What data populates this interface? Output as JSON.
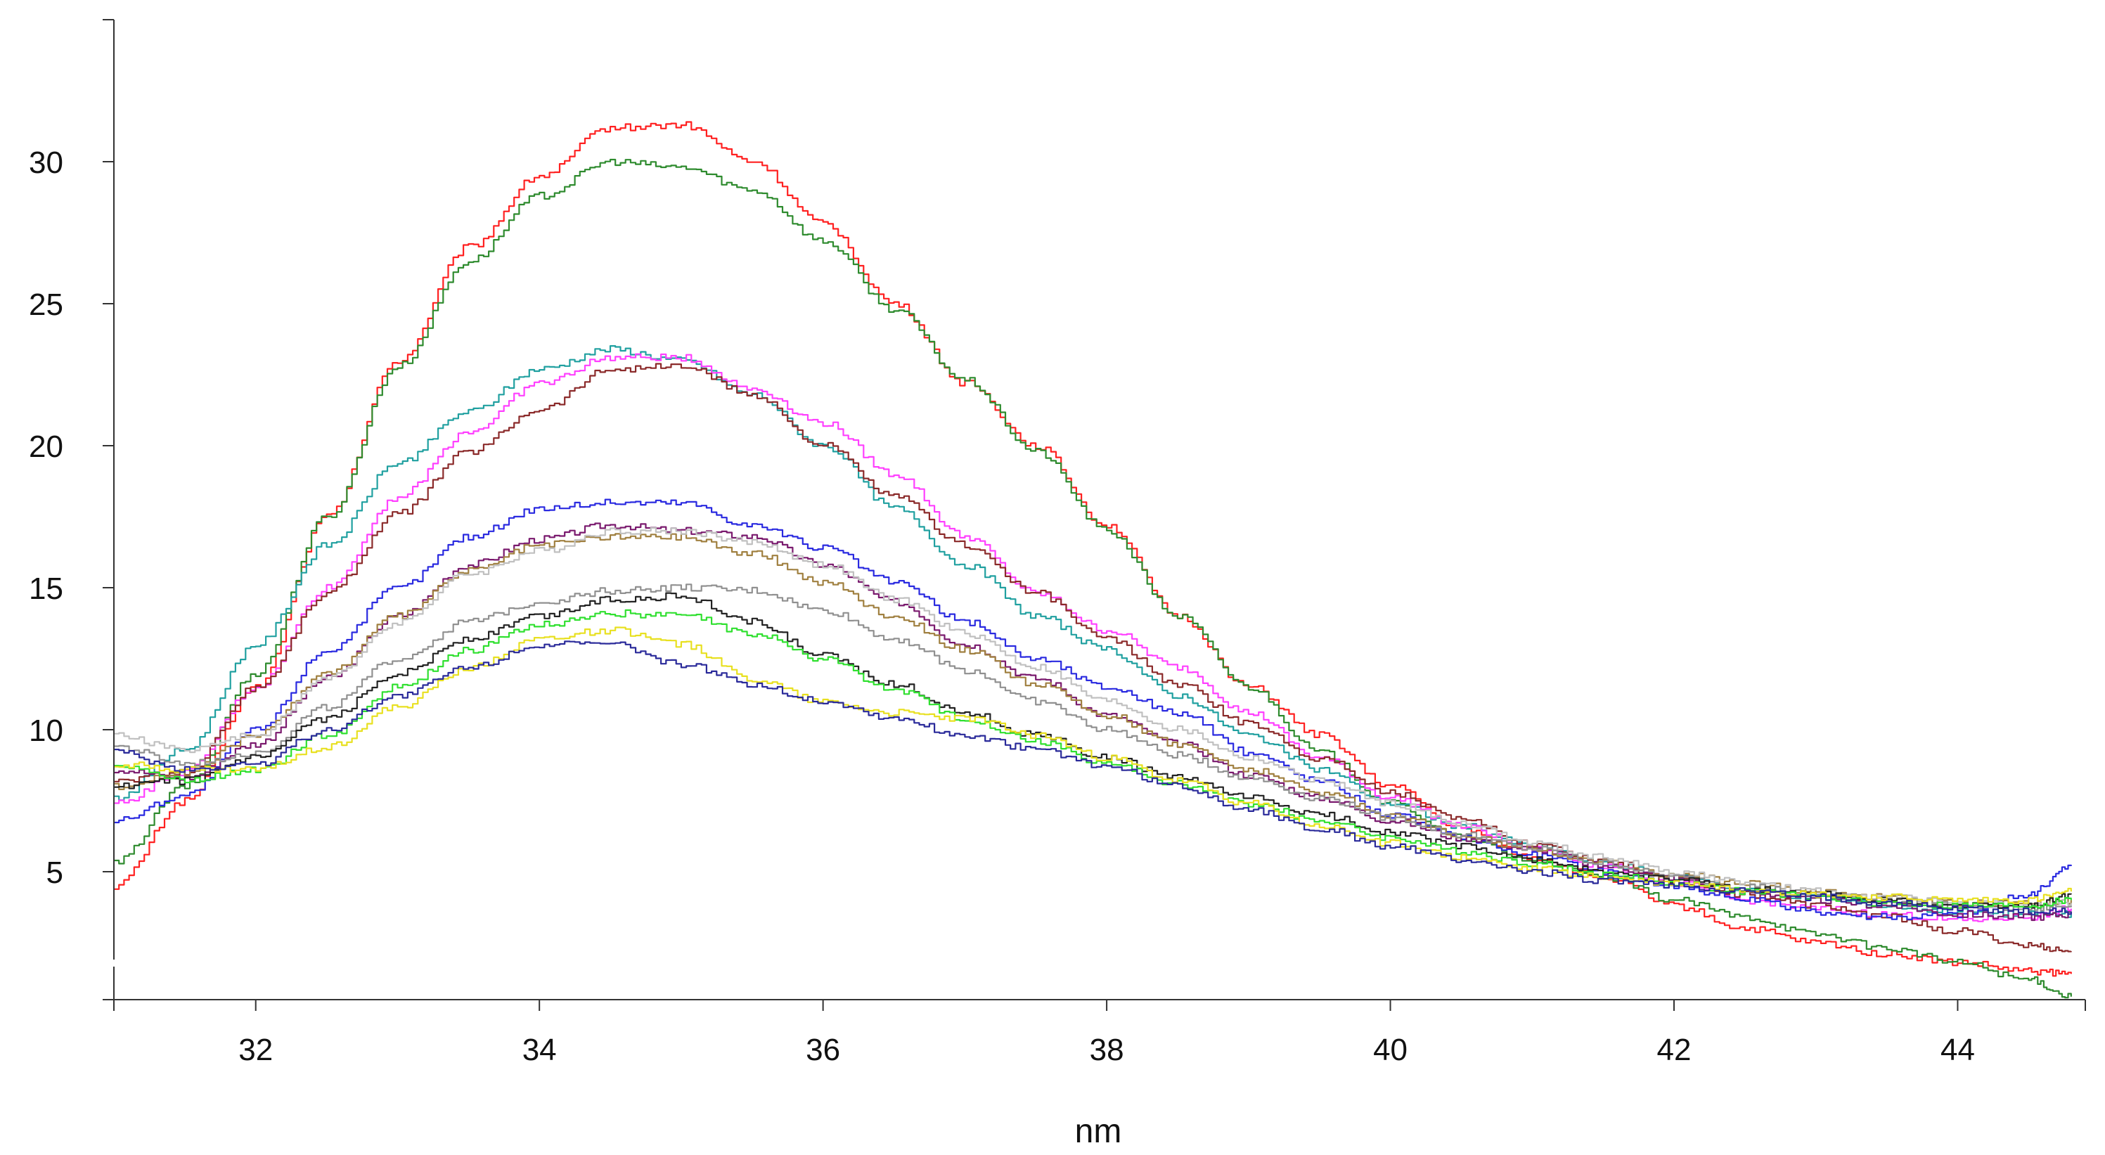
{
  "chart_data": {
    "type": "line",
    "title": "",
    "xlabel": "nm",
    "ylabel": "",
    "xlim": [
      31,
      44.9
    ],
    "ylim": [
      0,
      35
    ],
    "xticks": [
      "32",
      "34",
      "36",
      "38",
      "40",
      "42",
      "44"
    ],
    "yticks": [
      "5",
      "10",
      "15",
      "20",
      "25",
      "30"
    ],
    "grid": false,
    "legend": "none",
    "x": [
      31.0,
      31.5,
      32.0,
      32.5,
      33.0,
      33.5,
      34.0,
      34.5,
      35.0,
      35.5,
      36.0,
      36.5,
      37.0,
      37.5,
      38.0,
      38.5,
      39.0,
      39.5,
      40.0,
      40.5,
      41.0,
      41.5,
      42.0,
      42.5,
      43.0,
      43.5,
      44.0,
      44.5,
      44.8
    ],
    "series": [
      {
        "color": "#ff2020",
        "values": [
          4.5,
          7.5,
          11.5,
          17.5,
          23.0,
          27.0,
          29.5,
          31.2,
          31.3,
          30.0,
          27.8,
          25.0,
          22.2,
          20.0,
          17.2,
          14.0,
          11.5,
          9.8,
          8.0,
          6.5,
          5.5,
          4.8,
          3.8,
          3.0,
          2.5,
          2.1,
          1.8,
          1.5,
          1.4
        ]
      },
      {
        "color": "#2e8b2e",
        "values": [
          5.3,
          8.0,
          12.0,
          17.5,
          22.8,
          26.5,
          28.8,
          30.0,
          29.8,
          29.0,
          27.2,
          24.8,
          22.3,
          19.8,
          17.0,
          14.0,
          11.5,
          9.2,
          7.4,
          6.2,
          5.4,
          4.8,
          4.0,
          3.4,
          2.8,
          2.3,
          1.8,
          1.2,
          0.6
        ]
      },
      {
        "color": "#20a0a0",
        "values": [
          7.6,
          9.3,
          13.0,
          16.5,
          19.4,
          21.2,
          22.7,
          23.4,
          23.0,
          21.8,
          20.0,
          17.8,
          15.8,
          14.0,
          12.8,
          11.2,
          9.8,
          8.6,
          7.4,
          6.6,
          5.9,
          5.3,
          4.8,
          4.4,
          4.1,
          3.8,
          3.6,
          3.5,
          3.5
        ]
      },
      {
        "color": "#ff40ff",
        "values": [
          7.4,
          8.5,
          11.5,
          15.0,
          18.2,
          20.5,
          22.2,
          23.1,
          23.1,
          22.0,
          20.8,
          19.0,
          16.8,
          14.8,
          13.5,
          12.2,
          10.6,
          9.0,
          7.6,
          6.6,
          5.8,
          5.2,
          4.6,
          4.0,
          3.7,
          3.5,
          3.3,
          3.4,
          3.7
        ]
      },
      {
        "color": "#8b2a2a",
        "values": [
          8.2,
          8.5,
          11.5,
          14.8,
          17.6,
          19.8,
          21.3,
          22.7,
          22.8,
          21.8,
          20.0,
          18.2,
          16.5,
          14.8,
          13.2,
          11.6,
          10.2,
          9.0,
          7.8,
          6.8,
          6.0,
          5.4,
          4.7,
          4.2,
          3.8,
          3.4,
          2.9,
          2.4,
          2.2
        ]
      },
      {
        "color": "#2a2ae0",
        "values": [
          6.8,
          7.7,
          10.0,
          12.8,
          15.0,
          16.8,
          17.8,
          18.0,
          18.0,
          17.2,
          16.4,
          15.2,
          13.8,
          12.5,
          11.5,
          10.6,
          9.2,
          8.2,
          7.0,
          6.2,
          5.6,
          5.0,
          4.5,
          4.0,
          3.6,
          3.4,
          3.5,
          4.2,
          5.2
        ]
      },
      {
        "color": "#7a1a6e",
        "values": [
          8.6,
          8.3,
          9.5,
          11.8,
          14.0,
          15.8,
          16.7,
          17.2,
          17.0,
          16.8,
          15.8,
          14.5,
          13.0,
          11.8,
          10.5,
          9.5,
          8.4,
          7.6,
          6.8,
          6.2,
          5.8,
          5.2,
          4.8,
          4.3,
          4.0,
          3.8,
          3.5,
          3.4,
          3.5
        ]
      },
      {
        "color": "#a08040",
        "values": [
          8.0,
          8.5,
          9.8,
          12.0,
          14.0,
          15.6,
          16.5,
          16.8,
          16.8,
          16.2,
          15.2,
          14.0,
          12.8,
          11.6,
          10.5,
          9.5,
          8.6,
          7.8,
          7.0,
          6.3,
          5.8,
          5.3,
          4.9,
          4.6,
          4.3,
          4.1,
          3.9,
          3.9,
          4.0
        ]
      },
      {
        "color": "#c0c0c0",
        "values": [
          9.8,
          9.3,
          9.8,
          11.8,
          13.8,
          15.5,
          16.3,
          17.0,
          17.0,
          16.6,
          15.8,
          14.6,
          13.4,
          12.2,
          11.0,
          10.0,
          9.0,
          8.2,
          7.4,
          6.7,
          6.0,
          5.5,
          5.0,
          4.6,
          4.3,
          4.1,
          3.9,
          3.8,
          3.9
        ]
      },
      {
        "color": "#909090",
        "values": [
          9.4,
          8.8,
          9.2,
          10.8,
          12.5,
          13.8,
          14.5,
          14.9,
          15.0,
          14.9,
          14.2,
          13.2,
          12.1,
          11.0,
          10.0,
          9.1,
          8.3,
          7.6,
          6.9,
          6.3,
          5.8,
          5.3,
          4.8,
          4.5,
          4.2,
          4.0,
          3.8,
          3.7,
          3.8
        ]
      },
      {
        "color": "#222222",
        "values": [
          8.0,
          8.2,
          9.0,
          10.4,
          12.0,
          13.2,
          14.0,
          14.6,
          14.7,
          13.8,
          12.6,
          11.6,
          10.6,
          9.8,
          9.0,
          8.3,
          7.6,
          7.0,
          6.4,
          5.9,
          5.4,
          5.0,
          4.7,
          4.4,
          4.2,
          4.0,
          3.8,
          3.8,
          4.2
        ]
      },
      {
        "color": "#30e030",
        "values": [
          8.8,
          8.2,
          8.6,
          9.8,
          11.5,
          12.8,
          13.7,
          14.1,
          14.0,
          13.4,
          12.5,
          11.4,
          10.4,
          9.6,
          8.8,
          8.1,
          7.4,
          6.8,
          6.2,
          5.7,
          5.3,
          4.9,
          4.6,
          4.3,
          4.1,
          3.9,
          3.8,
          3.8,
          4.0
        ]
      },
      {
        "color": "#e8e020",
        "values": [
          8.8,
          8.6,
          8.6,
          9.4,
          10.8,
          12.2,
          13.2,
          13.5,
          13.0,
          11.8,
          11.0,
          10.6,
          10.4,
          9.8,
          9.0,
          8.2,
          7.4,
          6.6,
          6.0,
          5.5,
          5.1,
          4.8,
          4.6,
          4.4,
          4.2,
          4.1,
          4.0,
          4.0,
          4.3
        ]
      },
      {
        "color": "#2a2a9a",
        "values": [
          9.2,
          8.6,
          8.8,
          10.0,
          11.2,
          12.2,
          13.0,
          13.0,
          12.3,
          11.6,
          11.0,
          10.4,
          9.8,
          9.3,
          8.7,
          8.0,
          7.2,
          6.5,
          5.9,
          5.4,
          5.0,
          4.7,
          4.5,
          4.3,
          4.1,
          3.9,
          3.7,
          3.6,
          3.6
        ]
      }
    ]
  }
}
